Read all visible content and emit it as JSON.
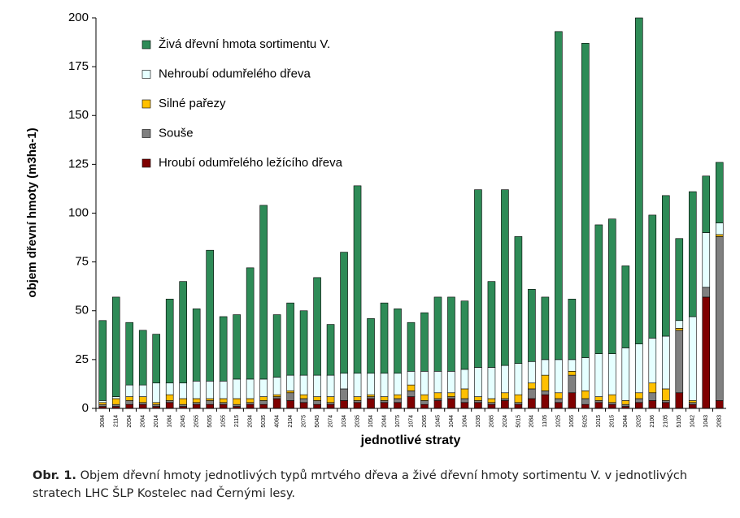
{
  "chart_data": {
    "type": "stacked_bar",
    "y_label": "objem dřevní hmoty (m3ha-1)",
    "x_label": "jednotlivé straty",
    "caption_label": "Obr. 1.",
    "caption": "Objem dřevní hmoty jednotlivých typů mrtvého dřeva a živé dřevní hmoty sortimentu V. v jednotlivých stratech LHC ŠLP Kostelec nad Černými lesy.",
    "categories": [
      "3084",
      "2114",
      "2054",
      "2064",
      "2014",
      "1084",
      "2045",
      "2055",
      "5055",
      "1055",
      "2115",
      "2034",
      "5035",
      "4064",
      "2104",
      "2075",
      "5045",
      "2074",
      "1034",
      "2035",
      "1054",
      "2044",
      "1075",
      "1074",
      "2065",
      "1045",
      "1044",
      "1064",
      "1035",
      "2085",
      "2024",
      "5015",
      "2084",
      "1105",
      "1025",
      "1065",
      "5025",
      "1015",
      "2015",
      "3044",
      "2025",
      "2106",
      "2105",
      "5105",
      "1042",
      "1043",
      "2083"
    ],
    "series": [
      {
        "name": "Hroubí odumřelého ležícího dřeva",
        "color": "#7f0000",
        "values": [
          1,
          1,
          2,
          2,
          1,
          3,
          1,
          2,
          2,
          2,
          1,
          2,
          2,
          5,
          4,
          3,
          2,
          2,
          4,
          3,
          5,
          3,
          3,
          6,
          2,
          4,
          5,
          3,
          3,
          2,
          4,
          2,
          5,
          7,
          3,
          8,
          2,
          3,
          2,
          1,
          3,
          4,
          3,
          8,
          2,
          57,
          4
        ]
      },
      {
        "name": "Souše",
        "color": "#808080",
        "values": [
          1,
          1,
          2,
          1,
          1,
          1,
          1,
          1,
          2,
          1,
          1,
          1,
          2,
          1,
          4,
          2,
          2,
          1,
          6,
          1,
          1,
          1,
          2,
          3,
          2,
          1,
          1,
          2,
          1,
          1,
          1,
          1,
          5,
          2,
          2,
          9,
          3,
          1,
          1,
          1,
          2,
          4,
          1,
          32,
          1,
          5,
          84
        ]
      },
      {
        "name": "Silné pařezy",
        "color": "#ffc000",
        "values": [
          1,
          3,
          2,
          3,
          1,
          3,
          3,
          2,
          1,
          2,
          3,
          2,
          2,
          1,
          1,
          2,
          2,
          3,
          0,
          2,
          1,
          2,
          2,
          3,
          3,
          3,
          2,
          5,
          2,
          2,
          3,
          4,
          3,
          8,
          3,
          2,
          4,
          2,
          4,
          2,
          3,
          5,
          6,
          1,
          1,
          0,
          1
        ]
      },
      {
        "name": "Nehroubí odumřelého dřeva",
        "color": "#e6ffff",
        "values": [
          1,
          1,
          6,
          6,
          10,
          6,
          8,
          9,
          9,
          9,
          10,
          10,
          9,
          9,
          8,
          10,
          11,
          11,
          8,
          12,
          11,
          12,
          11,
          7,
          12,
          11,
          11,
          10,
          15,
          16,
          14,
          16,
          11,
          8,
          17,
          6,
          17,
          22,
          21,
          27,
          25,
          23,
          27,
          4,
          43,
          28,
          6
        ]
      },
      {
        "name": "Živá dřevní hmota sortimentu V.",
        "color": "#2e8b57",
        "values": [
          41,
          51,
          32,
          28,
          25,
          43,
          52,
          37,
          67,
          33,
          33,
          57,
          89,
          32,
          37,
          33,
          50,
          26,
          62,
          96,
          28,
          36,
          33,
          25,
          30,
          38,
          38,
          35,
          91,
          44,
          90,
          65,
          37,
          32,
          168,
          31,
          161,
          66,
          69,
          42,
          167,
          63,
          72,
          42,
          64,
          29,
          31
        ]
      }
    ],
    "ylim": [
      0,
      200
    ],
    "yticks": [
      0,
      25,
      50,
      75,
      100,
      125,
      150,
      175,
      200
    ]
  }
}
